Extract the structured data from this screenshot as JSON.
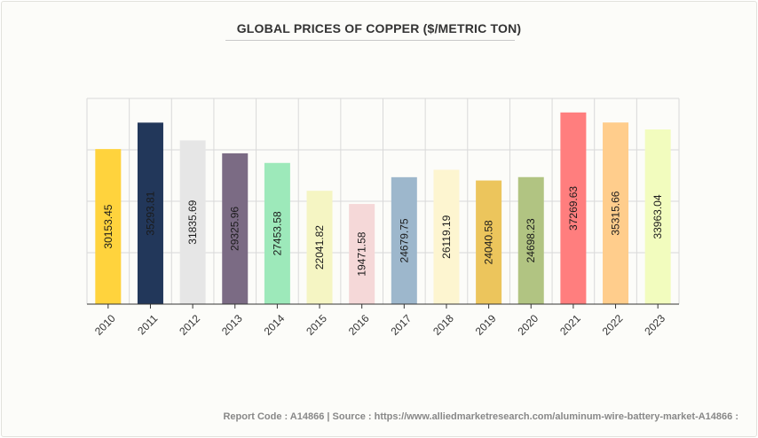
{
  "header": {
    "title": "GLOBAL PRICES OF COPPER ($/METRIC TON)"
  },
  "footer": {
    "text": "Report Code : A14866  |  Source : https://www.alliedmarketresearch.com/aluminum-wire-battery-market-A14866 :"
  },
  "chart_data": {
    "type": "bar",
    "title": "GLOBAL PRICES OF COPPER ($/METRIC TON)",
    "xlabel": "",
    "ylabel": "",
    "ylim": [
      0,
      40000
    ],
    "grid": true,
    "legend": "none",
    "categories": [
      "2010",
      "2011",
      "2012",
      "2013",
      "2014",
      "2015",
      "2016",
      "2017",
      "2018",
      "2019",
      "2020",
      "2021",
      "2022",
      "2023"
    ],
    "values": [
      30153.45,
      35293.81,
      31835.69,
      29325.96,
      27453.58,
      22041.82,
      19471.58,
      24679.75,
      26119.19,
      24040.58,
      24698.23,
      37269.63,
      35315.66,
      33963.04
    ],
    "labels": [
      "30153.45",
      "35293.81",
      "31835.69",
      "29325.96",
      "27453.58",
      "22041.82",
      "19471.58",
      "24679.75",
      "26119.19",
      "24040.58",
      "24698.23",
      "37269.63",
      "35315.66",
      "33963.04"
    ],
    "colors": [
      "#ffd33d",
      "#22375a",
      "#e6e6e6",
      "#7b6b84",
      "#9de9ba",
      "#f5f5c3",
      "#f5d8d8",
      "#9db7cc",
      "#fdf5d0",
      "#ecc55c",
      "#b1c482",
      "#ff7e7e",
      "#ffcd8c",
      "#f2fcbe"
    ]
  }
}
